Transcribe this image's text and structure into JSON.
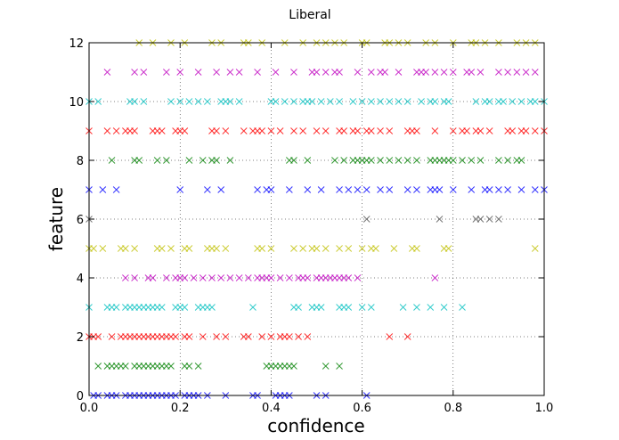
{
  "chart_data": {
    "type": "scatter",
    "title": "Liberal",
    "xlabel": "confidence",
    "ylabel": "feature",
    "xlim": [
      0.0,
      1.0
    ],
    "ylim": [
      0,
      12
    ],
    "xticks": [
      "0.0",
      "0.2",
      "0.4",
      "0.6",
      "0.8",
      "1.0"
    ],
    "yticks": [
      "0",
      "2",
      "4",
      "6",
      "8",
      "10",
      "12"
    ],
    "grid": true,
    "marker": "x",
    "series": [
      {
        "feature": 0,
        "color": "#0000ff",
        "x": [
          0.01,
          0.02,
          0.04,
          0.05,
          0.06,
          0.08,
          0.09,
          0.1,
          0.11,
          0.12,
          0.13,
          0.14,
          0.15,
          0.16,
          0.17,
          0.18,
          0.19,
          0.21,
          0.22,
          0.23,
          0.24,
          0.26,
          0.3,
          0.36,
          0.37,
          0.41,
          0.42,
          0.43,
          0.44,
          0.5,
          0.52,
          0.61
        ]
      },
      {
        "feature": 1,
        "color": "#008000",
        "x": [
          0.02,
          0.04,
          0.05,
          0.06,
          0.07,
          0.08,
          0.1,
          0.11,
          0.12,
          0.13,
          0.14,
          0.15,
          0.16,
          0.17,
          0.18,
          0.21,
          0.22,
          0.24,
          0.39,
          0.4,
          0.41,
          0.42,
          0.43,
          0.44,
          0.45,
          0.52,
          0.55
        ]
      },
      {
        "feature": 2,
        "color": "#ff0000",
        "x": [
          0.0,
          0.01,
          0.02,
          0.05,
          0.07,
          0.08,
          0.09,
          0.1,
          0.11,
          0.12,
          0.13,
          0.14,
          0.15,
          0.16,
          0.17,
          0.18,
          0.19,
          0.21,
          0.22,
          0.25,
          0.28,
          0.3,
          0.34,
          0.35,
          0.38,
          0.4,
          0.42,
          0.43,
          0.44,
          0.46,
          0.48,
          0.66,
          0.7
        ]
      },
      {
        "feature": 3,
        "color": "#00bfbf",
        "x": [
          0.0,
          0.04,
          0.05,
          0.06,
          0.08,
          0.09,
          0.1,
          0.11,
          0.12,
          0.13,
          0.14,
          0.15,
          0.16,
          0.19,
          0.2,
          0.21,
          0.24,
          0.25,
          0.26,
          0.27,
          0.36,
          0.45,
          0.46,
          0.49,
          0.5,
          0.51,
          0.55,
          0.56,
          0.57,
          0.6,
          0.62,
          0.69,
          0.72,
          0.75,
          0.78,
          0.82
        ]
      },
      {
        "feature": 4,
        "color": "#bf00bf",
        "x": [
          0.08,
          0.1,
          0.13,
          0.14,
          0.17,
          0.19,
          0.2,
          0.21,
          0.23,
          0.25,
          0.27,
          0.29,
          0.31,
          0.33,
          0.35,
          0.37,
          0.38,
          0.39,
          0.4,
          0.42,
          0.44,
          0.46,
          0.47,
          0.48,
          0.5,
          0.51,
          0.52,
          0.53,
          0.54,
          0.55,
          0.56,
          0.57,
          0.59,
          0.76
        ]
      },
      {
        "feature": 5,
        "color": "#bfbf00",
        "x": [
          0.0,
          0.01,
          0.03,
          0.07,
          0.08,
          0.1,
          0.15,
          0.16,
          0.18,
          0.21,
          0.22,
          0.26,
          0.27,
          0.28,
          0.3,
          0.37,
          0.38,
          0.4,
          0.45,
          0.47,
          0.49,
          0.5,
          0.52,
          0.55,
          0.57,
          0.6,
          0.62,
          0.63,
          0.67,
          0.71,
          0.72,
          0.78,
          0.79,
          0.98
        ]
      },
      {
        "feature": 6,
        "color": "#555555",
        "x": [
          0.0,
          0.61,
          0.77,
          0.85,
          0.86,
          0.88,
          0.9
        ]
      },
      {
        "feature": 7,
        "color": "#0000ff",
        "x": [
          0.0,
          0.03,
          0.06,
          0.2,
          0.26,
          0.29,
          0.37,
          0.39,
          0.4,
          0.44,
          0.48,
          0.51,
          0.55,
          0.57,
          0.59,
          0.61,
          0.64,
          0.66,
          0.7,
          0.72,
          0.75,
          0.76,
          0.77,
          0.8,
          0.84,
          0.87,
          0.88,
          0.9,
          0.92,
          0.95,
          0.98,
          1.0
        ]
      },
      {
        "feature": 8,
        "color": "#008000",
        "x": [
          0.05,
          0.1,
          0.11,
          0.15,
          0.17,
          0.22,
          0.25,
          0.27,
          0.28,
          0.31,
          0.44,
          0.45,
          0.48,
          0.54,
          0.56,
          0.58,
          0.59,
          0.6,
          0.61,
          0.62,
          0.64,
          0.66,
          0.68,
          0.7,
          0.72,
          0.75,
          0.76,
          0.77,
          0.78,
          0.79,
          0.8,
          0.82,
          0.84,
          0.86,
          0.9,
          0.92,
          0.94,
          0.95
        ]
      },
      {
        "feature": 9,
        "color": "#ff0000",
        "x": [
          0.0,
          0.04,
          0.06,
          0.08,
          0.09,
          0.1,
          0.14,
          0.15,
          0.16,
          0.19,
          0.2,
          0.21,
          0.27,
          0.28,
          0.3,
          0.34,
          0.36,
          0.37,
          0.38,
          0.4,
          0.42,
          0.45,
          0.47,
          0.5,
          0.52,
          0.55,
          0.56,
          0.58,
          0.59,
          0.61,
          0.62,
          0.64,
          0.66,
          0.7,
          0.71,
          0.72,
          0.76,
          0.8,
          0.82,
          0.83,
          0.85,
          0.86,
          0.88,
          0.92,
          0.93,
          0.95,
          0.96,
          0.98,
          1.0
        ]
      },
      {
        "feature": 10,
        "color": "#00bfbf",
        "x": [
          0.0,
          0.02,
          0.09,
          0.1,
          0.12,
          0.18,
          0.2,
          0.22,
          0.24,
          0.26,
          0.29,
          0.3,
          0.31,
          0.33,
          0.4,
          0.41,
          0.43,
          0.45,
          0.47,
          0.48,
          0.49,
          0.51,
          0.53,
          0.55,
          0.58,
          0.6,
          0.62,
          0.64,
          0.66,
          0.68,
          0.7,
          0.73,
          0.75,
          0.76,
          0.78,
          0.79,
          0.85,
          0.87,
          0.88,
          0.9,
          0.91,
          0.93,
          0.95,
          0.97,
          0.98,
          1.0
        ]
      },
      {
        "feature": 11,
        "color": "#bf00bf",
        "x": [
          0.04,
          0.1,
          0.12,
          0.17,
          0.2,
          0.24,
          0.28,
          0.31,
          0.33,
          0.37,
          0.41,
          0.45,
          0.49,
          0.5,
          0.52,
          0.54,
          0.55,
          0.59,
          0.62,
          0.64,
          0.65,
          0.68,
          0.72,
          0.73,
          0.74,
          0.76,
          0.78,
          0.8,
          0.83,
          0.84,
          0.86,
          0.9,
          0.92,
          0.94,
          0.96,
          0.98
        ]
      },
      {
        "feature": 12,
        "color": "#bfbf00",
        "x": [
          0.11,
          0.14,
          0.18,
          0.21,
          0.27,
          0.29,
          0.34,
          0.35,
          0.38,
          0.43,
          0.47,
          0.5,
          0.52,
          0.54,
          0.56,
          0.6,
          0.61,
          0.65,
          0.66,
          0.68,
          0.7,
          0.74,
          0.76,
          0.8,
          0.84,
          0.85,
          0.87,
          0.9,
          0.94,
          0.96,
          0.98
        ]
      }
    ]
  }
}
